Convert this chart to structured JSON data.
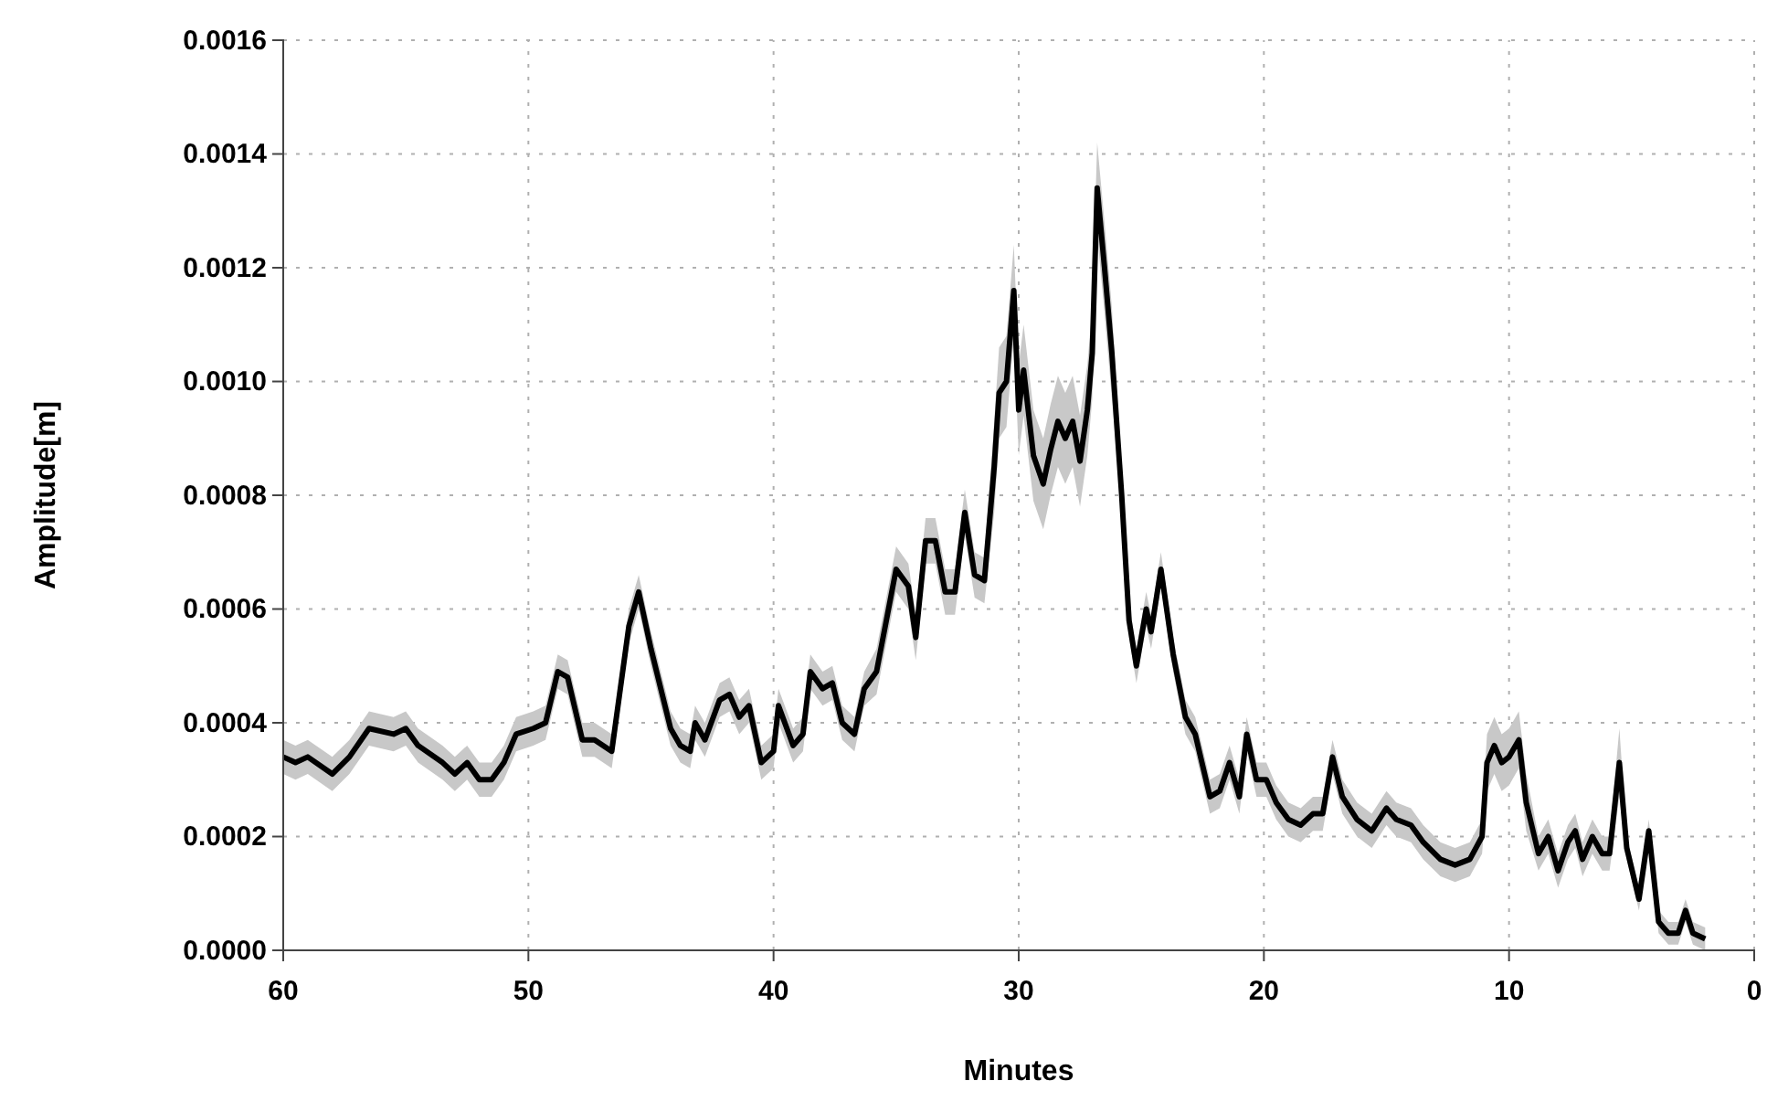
{
  "chart_data": {
    "type": "line",
    "xlabel": "Minutes",
    "ylabel": "Amplitude[m]",
    "xlim": [
      60,
      0
    ],
    "xticks": [
      60,
      50,
      40,
      30,
      20,
      10,
      0
    ],
    "ylim": [
      0,
      0.0016
    ],
    "yticks": [
      {
        "value": 0,
        "label": "0.0000"
      },
      {
        "value": 0.0002,
        "label": "0.0002"
      },
      {
        "value": 0.0004,
        "label": "0.0004"
      },
      {
        "value": 0.0006,
        "label": "0.0006"
      },
      {
        "value": 0.0008,
        "label": "0.0008"
      },
      {
        "value": 0.001,
        "label": "0.0010"
      },
      {
        "value": 0.0012,
        "label": "0.0012"
      },
      {
        "value": 0.0014,
        "label": "0.0014"
      },
      {
        "value": 0.0016,
        "label": "0.0016"
      }
    ],
    "grid": true,
    "line_style": "solid",
    "marker": "none",
    "x": [
      60,
      59.5,
      59,
      58,
      57.3,
      56.5,
      55.5,
      55,
      54.5,
      53.5,
      53,
      52.5,
      52,
      51.5,
      51,
      50.5,
      49.8,
      49.3,
      48.8,
      48.4,
      47.8,
      47.3,
      46.6,
      45.9,
      45.5,
      45,
      44.2,
      43.8,
      43.4,
      43.2,
      42.8,
      42.2,
      41.8,
      41.4,
      41,
      40.5,
      40,
      39.8,
      39.2,
      38.8,
      38.5,
      38,
      37.6,
      37.2,
      36.7,
      36.3,
      35.8,
      35.4,
      35,
      34.5,
      34.2,
      33.8,
      33.4,
      33,
      32.6,
      32.2,
      31.8,
      31.4,
      31,
      30.8,
      30.5,
      30.2,
      30,
      29.8,
      29.4,
      29,
      28.7,
      28.4,
      28.1,
      27.8,
      27.5,
      27.2,
      27,
      26.8,
      26.5,
      26.2,
      25.8,
      25.5,
      25.2,
      24.8,
      24.6,
      24.2,
      23.7,
      23.2,
      22.8,
      22.2,
      21.8,
      21.4,
      21,
      20.7,
      20.3,
      19.9,
      19.5,
      19,
      18.5,
      18,
      17.6,
      17.2,
      16.8,
      16.2,
      15.6,
      15,
      14.6,
      14,
      13.5,
      12.8,
      12.2,
      11.6,
      11.1,
      10.9,
      10.6,
      10.3,
      10,
      9.6,
      9.3,
      8.8,
      8.4,
      8,
      7.6,
      7.3,
      7,
      6.6,
      6.2,
      5.9,
      5.5,
      5.2,
      4.7,
      4.3,
      3.9,
      3.5,
      3.1,
      2.8,
      2.5,
      2
    ],
    "series": [
      {
        "color": "#000000",
        "values": [
          0.00034,
          0.00033,
          0.00034,
          0.00031,
          0.00034,
          0.00039,
          0.00038,
          0.00039,
          0.00036,
          0.00033,
          0.00031,
          0.00033,
          0.0003,
          0.0003,
          0.00033,
          0.00038,
          0.00039,
          0.0004,
          0.00049,
          0.00048,
          0.00037,
          0.00037,
          0.00035,
          0.00057,
          0.00063,
          0.00053,
          0.00039,
          0.00036,
          0.00035,
          0.0004,
          0.00037,
          0.00044,
          0.00045,
          0.00041,
          0.00043,
          0.00033,
          0.00035,
          0.00043,
          0.00036,
          0.00038,
          0.00049,
          0.00046,
          0.00047,
          0.0004,
          0.00038,
          0.00046,
          0.00049,
          0.00058,
          0.00067,
          0.00064,
          0.00055,
          0.00072,
          0.00072,
          0.00063,
          0.00063,
          0.00077,
          0.00066,
          0.00065,
          0.00085,
          0.00098,
          0.001,
          0.00116,
          0.00095,
          0.00102,
          0.00087,
          0.00082,
          0.00088,
          0.00093,
          0.0009,
          0.00093,
          0.00086,
          0.00095,
          0.00105,
          0.00134,
          0.0012,
          0.00105,
          0.0008,
          0.00058,
          0.0005,
          0.0006,
          0.00056,
          0.00067,
          0.00052,
          0.00041,
          0.00038,
          0.00027,
          0.00028,
          0.00033,
          0.00027,
          0.00038,
          0.0003,
          0.0003,
          0.00026,
          0.00023,
          0.00022,
          0.00024,
          0.00024,
          0.00034,
          0.00027,
          0.00023,
          0.00021,
          0.00025,
          0.00023,
          0.00022,
          0.00019,
          0.00016,
          0.00015,
          0.00016,
          0.0002,
          0.00033,
          0.00036,
          0.00033,
          0.00034,
          0.00037,
          0.00026,
          0.00017,
          0.0002,
          0.00014,
          0.00019,
          0.00021,
          0.00016,
          0.0002,
          0.00017,
          0.00017,
          0.00033,
          0.00018,
          9e-05,
          0.00021,
          5e-05,
          3e-05,
          3e-05,
          7e-05,
          3e-05,
          2e-05
        ],
        "lower": [
          0.00031,
          0.0003,
          0.00031,
          0.00028,
          0.00031,
          0.00036,
          0.00035,
          0.00036,
          0.00033,
          0.0003,
          0.00028,
          0.0003,
          0.00027,
          0.00027,
          0.0003,
          0.00035,
          0.00036,
          0.00037,
          0.00046,
          0.00045,
          0.00034,
          0.00034,
          0.00032,
          0.00054,
          0.0006,
          0.0005,
          0.00036,
          0.00033,
          0.00032,
          0.00037,
          0.00034,
          0.00041,
          0.00042,
          0.00038,
          0.0004,
          0.0003,
          0.00032,
          0.0004,
          0.00033,
          0.00035,
          0.00046,
          0.00043,
          0.00044,
          0.00037,
          0.00035,
          0.00043,
          0.00045,
          0.00054,
          0.00063,
          0.0006,
          0.00051,
          0.00068,
          0.00068,
          0.00059,
          0.00059,
          0.00073,
          0.00062,
          0.00061,
          0.00077,
          0.0009,
          0.00092,
          0.00108,
          0.00087,
          0.00094,
          0.00079,
          0.00074,
          0.0008,
          0.00085,
          0.00082,
          0.00085,
          0.00078,
          0.00087,
          0.00097,
          0.00126,
          0.00112,
          0.00097,
          0.00077,
          0.00055,
          0.00047,
          0.00057,
          0.00053,
          0.00064,
          0.00049,
          0.00038,
          0.00035,
          0.00024,
          0.00025,
          0.0003,
          0.00024,
          0.00035,
          0.00027,
          0.00027,
          0.00023,
          0.0002,
          0.00019,
          0.00021,
          0.00021,
          0.00031,
          0.00024,
          0.0002,
          0.00018,
          0.00022,
          0.0002,
          0.00019,
          0.00016,
          0.00013,
          0.00012,
          0.00013,
          0.00017,
          0.00028,
          0.00031,
          0.00028,
          0.00029,
          0.00032,
          0.00021,
          0.00014,
          0.00017,
          0.00011,
          0.00016,
          0.00018,
          0.00013,
          0.00017,
          0.00014,
          0.00014,
          0.00027,
          0.00016,
          7e-05,
          0.00019,
          3e-05,
          1e-05,
          1e-05,
          5e-05,
          1e-05,
          0
        ],
        "upper": [
          0.00037,
          0.00036,
          0.00037,
          0.00034,
          0.00037,
          0.00042,
          0.00041,
          0.00042,
          0.00039,
          0.00036,
          0.00034,
          0.00036,
          0.00033,
          0.00033,
          0.00036,
          0.00041,
          0.00042,
          0.00043,
          0.00052,
          0.00051,
          0.0004,
          0.0004,
          0.00038,
          0.0006,
          0.00066,
          0.00056,
          0.00042,
          0.00039,
          0.00038,
          0.00043,
          0.0004,
          0.00047,
          0.00048,
          0.00044,
          0.00046,
          0.00036,
          0.00038,
          0.00046,
          0.00039,
          0.00041,
          0.00052,
          0.00049,
          0.0005,
          0.00043,
          0.00041,
          0.00049,
          0.00053,
          0.00062,
          0.00071,
          0.00068,
          0.00059,
          0.00076,
          0.00076,
          0.00067,
          0.00067,
          0.00081,
          0.0007,
          0.00069,
          0.00093,
          0.00106,
          0.00108,
          0.00124,
          0.00103,
          0.0011,
          0.00095,
          0.0009,
          0.00096,
          0.00101,
          0.00098,
          0.00101,
          0.00094,
          0.00103,
          0.00113,
          0.00142,
          0.00128,
          0.00113,
          0.00083,
          0.00061,
          0.00053,
          0.00063,
          0.00059,
          0.0007,
          0.00055,
          0.00044,
          0.00041,
          0.0003,
          0.00031,
          0.00036,
          0.0003,
          0.00041,
          0.00033,
          0.00033,
          0.00029,
          0.00026,
          0.00025,
          0.00027,
          0.00027,
          0.00037,
          0.0003,
          0.00026,
          0.00024,
          0.00028,
          0.00026,
          0.00025,
          0.00022,
          0.00019,
          0.00018,
          0.00019,
          0.00023,
          0.00038,
          0.00041,
          0.00038,
          0.00039,
          0.00042,
          0.00031,
          0.0002,
          0.00023,
          0.00017,
          0.00022,
          0.00024,
          0.00019,
          0.00023,
          0.0002,
          0.0002,
          0.00039,
          0.0002,
          0.00011,
          0.00023,
          7e-05,
          5e-05,
          5e-05,
          9e-05,
          5e-05,
          4e-05
        ]
      }
    ]
  }
}
